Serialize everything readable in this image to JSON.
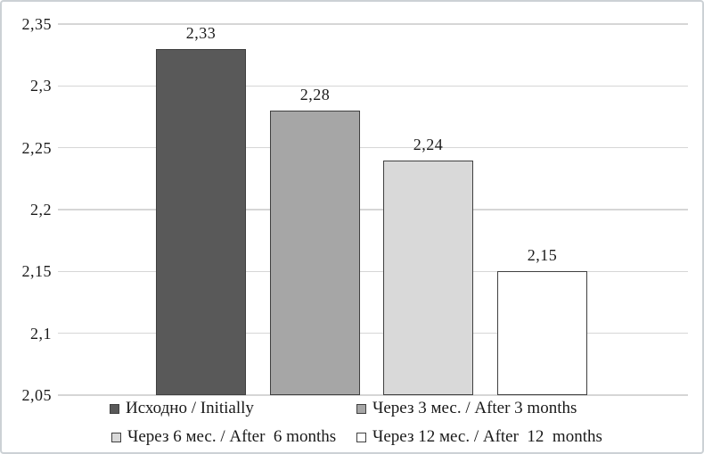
{
  "chart_data": {
    "type": "bar",
    "categories": [
      "Исходно / Initially",
      "Через 3 мес. / After 3 months",
      "Через 6 мес. / After  6 months",
      "Через 12 мес. / After  12  months"
    ],
    "values": [
      2.33,
      2.28,
      2.24,
      2.15
    ],
    "value_labels": [
      "2,33",
      "2,28",
      "2,24",
      "2,15"
    ],
    "title": "",
    "xlabel": "",
    "ylabel": "",
    "ylim": [
      2.05,
      2.35
    ],
    "y_ticks": [
      2.35,
      2.3,
      2.25,
      2.2,
      2.15,
      2.1,
      2.05
    ],
    "y_tick_labels": [
      "2,35",
      "2,3",
      "2,25",
      "2,2",
      "2,15",
      "2,1",
      "2,05"
    ],
    "grid": true,
    "legend_position": "bottom",
    "bar_colors": [
      "#595959",
      "#a6a6a6",
      "#d9d9d9",
      "#ffffff"
    ],
    "bar_border_color": "#404040",
    "gridline_color": "#d6d6d6",
    "decimal_separator": ","
  },
  "legend": {
    "items": [
      {
        "label": "Исходно / Initially",
        "color": "#595959"
      },
      {
        "label": "Через 3 мес. / After 3 months",
        "color": "#a6a6a6"
      },
      {
        "label": "Через 6 мес. / After  6 months",
        "color": "#d9d9d9"
      },
      {
        "label": "Через 12 мес. / After  12  months",
        "color": "#ffffff"
      }
    ]
  }
}
